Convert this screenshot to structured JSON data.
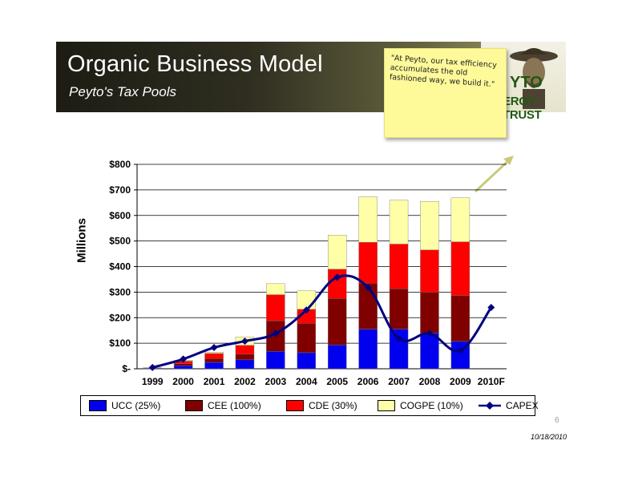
{
  "header": {
    "title": "Organic Business Model",
    "subtitle": "Peyto's Tax Pools"
  },
  "brand": {
    "line1": "YTO",
    "line2": "ERGY TRUST"
  },
  "note": {
    "text": "\"At Peyto, our tax efficiency accumulates the old fashioned way, we build it.\""
  },
  "footer": {
    "page_number": "6",
    "date": "10/18/2010"
  },
  "colors": {
    "ucc": "#0000ee",
    "cee": "#800000",
    "cde": "#ff0000",
    "cogpe": "#ffffa8",
    "capex": "#000080"
  },
  "chart_data": {
    "type": "bar",
    "stacked": true,
    "categories": [
      "1999",
      "2000",
      "2001",
      "2002",
      "2003",
      "2004",
      "2005",
      "2006",
      "2007",
      "2008",
      "2009",
      "2010F"
    ],
    "ylabel": "Millions",
    "xlabel": "",
    "ylim": [
      0,
      800
    ],
    "yticks": [
      "$-",
      "$100",
      "$200",
      "$300",
      "$400",
      "$500",
      "$600",
      "$700",
      "$800"
    ],
    "grid": true,
    "legend_position": "bottom",
    "series": [
      {
        "name": "UCC (25%)",
        "values": [
          2,
          12,
          25,
          35,
          68,
          63,
          93,
          155,
          155,
          140,
          107,
          0
        ]
      },
      {
        "name": "CEE (100%)",
        "values": [
          1,
          8,
          15,
          22,
          120,
          115,
          182,
          180,
          158,
          160,
          180,
          0
        ]
      },
      {
        "name": "CDE (30%)",
        "values": [
          1,
          10,
          20,
          35,
          102,
          55,
          115,
          160,
          175,
          165,
          210,
          0
        ]
      },
      {
        "name": "COGPE (10%)",
        "values": [
          0,
          3,
          5,
          33,
          43,
          72,
          133,
          178,
          172,
          190,
          172,
          0
        ]
      }
    ],
    "line_series": [
      {
        "name": "CAPEX",
        "values": [
          5,
          38,
          83,
          108,
          138,
          230,
          358,
          318,
          118,
          138,
          72,
          240
        ]
      }
    ]
  }
}
